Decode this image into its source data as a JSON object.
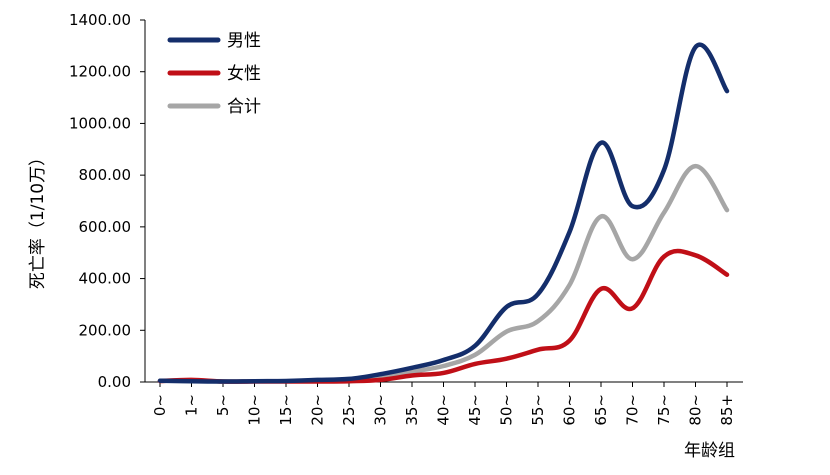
{
  "chart_data": {
    "type": "line",
    "title": "",
    "xlabel": "年龄组",
    "ylabel": "死亡率（1/10万）",
    "ylim": [
      0,
      1400
    ],
    "y_ticks": [
      "0.00",
      "200.00",
      "400.00",
      "600.00",
      "800.00",
      "1000.00",
      "1200.00",
      "1400.00"
    ],
    "categories": [
      "0~",
      "1~",
      "5~",
      "10~",
      "15~",
      "20~",
      "25~",
      "30~",
      "35~",
      "40~",
      "45~",
      "50~",
      "55~",
      "60~",
      "65~",
      "70~",
      "75~",
      "80~",
      "85+"
    ],
    "legend_position": "top-left",
    "grid": false,
    "series": [
      {
        "name": "男性",
        "color": "#142e6b",
        "values": [
          5,
          3,
          2,
          3,
          4,
          8,
          12,
          30,
          55,
          85,
          140,
          290,
          340,
          580,
          925,
          680,
          820,
          1295,
          1125
        ]
      },
      {
        "name": "女性",
        "color": "#c00f17",
        "values": [
          4,
          8,
          2,
          2,
          2,
          2,
          3,
          8,
          25,
          35,
          70,
          90,
          125,
          160,
          360,
          285,
          485,
          490,
          415
        ]
      },
      {
        "name": "合计",
        "color": "#a6a6a6",
        "values": [
          5,
          5,
          2,
          3,
          3,
          5,
          8,
          20,
          40,
          62,
          105,
          195,
          235,
          375,
          640,
          475,
          655,
          835,
          665
        ]
      }
    ]
  }
}
